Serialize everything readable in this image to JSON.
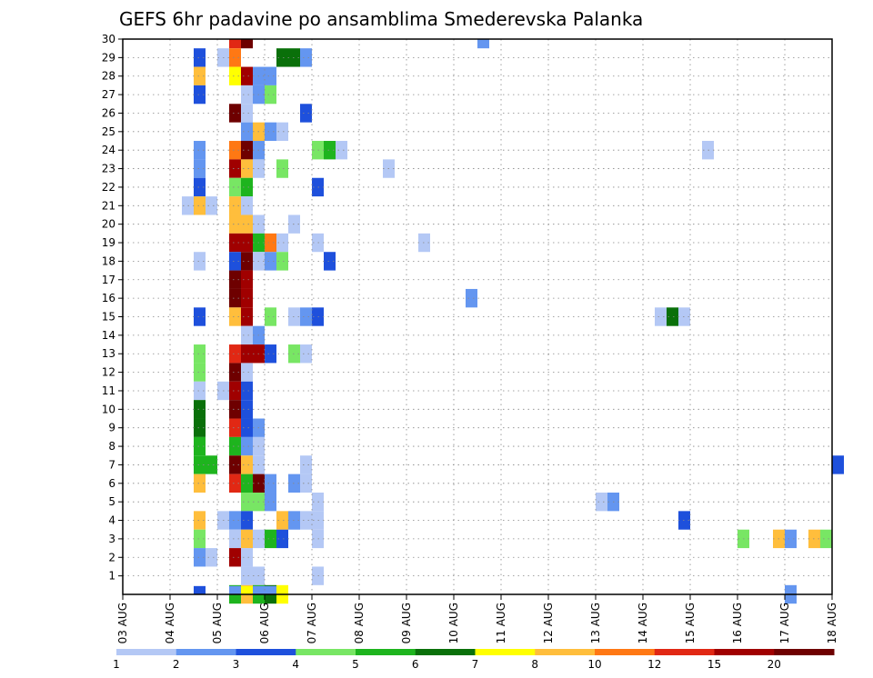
{
  "chart_data": {
    "type": "heatmap",
    "title": "GEFS 6hr padavine po ansamblima Smederevska Palanka",
    "xlabel": "",
    "ylabel": "",
    "x_tick_labels": [
      "03 AUG",
      "04 AUG",
      "05 AUG",
      "06 AUG",
      "07 AUG",
      "08 AUG",
      "09 AUG",
      "10 AUG",
      "11 AUG",
      "12 AUG",
      "13 AUG",
      "14 AUG",
      "15 AUG",
      "16 AUG",
      "17 AUG",
      "18 AUG"
    ],
    "y_tick_labels": [
      "1",
      "2",
      "3",
      "4",
      "5",
      "6",
      "7",
      "8",
      "9",
      "10",
      "11",
      "12",
      "13",
      "14",
      "15",
      "16",
      "17",
      "18",
      "19",
      "20",
      "21",
      "22",
      "23",
      "24",
      "25",
      "26",
      "27",
      "28",
      "29",
      "30"
    ],
    "xlim_days": [
      0,
      15
    ],
    "ylim_members": [
      0,
      30
    ],
    "time_step_hours": 6,
    "grid": "dotted",
    "legend_placement": "bottom colorbar",
    "colorbar": {
      "labels": [
        "1",
        "2",
        "3",
        "4",
        "5",
        "6",
        "7",
        "8",
        "10",
        "12",
        "15",
        "20"
      ],
      "colors": [
        "#b4c8f5",
        "#6496f0",
        "#1e50dc",
        "#78e664",
        "#1eb41e",
        "#0a700a",
        "#ffff00",
        "#ffbe3c",
        "#ff7814",
        "#e12814",
        "#a00000",
        "#6e0000"
      ]
    },
    "cells_note": "row = ensemble member 1-30 (0 = bottom row below member 1), col = 6-hour step index from 03 AUG 00Z, level = colorbar bin index 0-11",
    "cells": [
      [
        30,
        9,
        9
      ],
      [
        30,
        10,
        11
      ],
      [
        30,
        30,
        1
      ],
      [
        29,
        6,
        2
      ],
      [
        29,
        8,
        0
      ],
      [
        29,
        9,
        8
      ],
      [
        29,
        13,
        5
      ],
      [
        29,
        14,
        5
      ],
      [
        29,
        15,
        1
      ],
      [
        28,
        6,
        7
      ],
      [
        28,
        9,
        6
      ],
      [
        28,
        10,
        10
      ],
      [
        28,
        11,
        1
      ],
      [
        28,
        12,
        1
      ],
      [
        27,
        6,
        2
      ],
      [
        27,
        10,
        0
      ],
      [
        27,
        11,
        1
      ],
      [
        27,
        12,
        3
      ],
      [
        26,
        9,
        11
      ],
      [
        26,
        10,
        0
      ],
      [
        26,
        15,
        2
      ],
      [
        25,
        10,
        1
      ],
      [
        25,
        11,
        7
      ],
      [
        25,
        12,
        1
      ],
      [
        25,
        13,
        0
      ],
      [
        24,
        6,
        1
      ],
      [
        24,
        9,
        8
      ],
      [
        24,
        10,
        11
      ],
      [
        24,
        11,
        1
      ],
      [
        24,
        16,
        3
      ],
      [
        24,
        17,
        4
      ],
      [
        24,
        18,
        0
      ],
      [
        24,
        49,
        0
      ],
      [
        23,
        6,
        1
      ],
      [
        23,
        9,
        10
      ],
      [
        23,
        10,
        7
      ],
      [
        23,
        11,
        0
      ],
      [
        23,
        13,
        3
      ],
      [
        23,
        22,
        0
      ],
      [
        22,
        6,
        2
      ],
      [
        22,
        9,
        3
      ],
      [
        22,
        10,
        4
      ],
      [
        22,
        16,
        2
      ],
      [
        21,
        5,
        0
      ],
      [
        21,
        6,
        7
      ],
      [
        21,
        7,
        0
      ],
      [
        21,
        9,
        7
      ],
      [
        21,
        10,
        0
      ],
      [
        20,
        9,
        7
      ],
      [
        20,
        10,
        7
      ],
      [
        20,
        11,
        0
      ],
      [
        20,
        14,
        0
      ],
      [
        19,
        9,
        10
      ],
      [
        19,
        10,
        10
      ],
      [
        19,
        11,
        4
      ],
      [
        19,
        12,
        8
      ],
      [
        19,
        13,
        0
      ],
      [
        19,
        16,
        0
      ],
      [
        19,
        25,
        0
      ],
      [
        18,
        6,
        0
      ],
      [
        18,
        9,
        2
      ],
      [
        18,
        10,
        11
      ],
      [
        18,
        11,
        0
      ],
      [
        18,
        12,
        1
      ],
      [
        18,
        13,
        3
      ],
      [
        18,
        17,
        2
      ],
      [
        17,
        9,
        11
      ],
      [
        17,
        10,
        10
      ],
      [
        16,
        9,
        11
      ],
      [
        16,
        10,
        10
      ],
      [
        16,
        29,
        1
      ],
      [
        15,
        6,
        2
      ],
      [
        15,
        9,
        7
      ],
      [
        15,
        10,
        10
      ],
      [
        15,
        12,
        3
      ],
      [
        15,
        14,
        0
      ],
      [
        15,
        15,
        1
      ],
      [
        15,
        16,
        2
      ],
      [
        15,
        45,
        0
      ],
      [
        15,
        46,
        5
      ],
      [
        15,
        47,
        0
      ],
      [
        14,
        10,
        0
      ],
      [
        14,
        11,
        1
      ],
      [
        13,
        6,
        3
      ],
      [
        13,
        9,
        9
      ],
      [
        13,
        10,
        10
      ],
      [
        13,
        11,
        10
      ],
      [
        13,
        12,
        2
      ],
      [
        13,
        14,
        3
      ],
      [
        13,
        15,
        0
      ],
      [
        12,
        6,
        3
      ],
      [
        12,
        9,
        11
      ],
      [
        12,
        10,
        0
      ],
      [
        11,
        6,
        0
      ],
      [
        11,
        8,
        0
      ],
      [
        11,
        9,
        10
      ],
      [
        11,
        10,
        2
      ],
      [
        10,
        6,
        5
      ],
      [
        10,
        9,
        11
      ],
      [
        10,
        10,
        2
      ],
      [
        9,
        6,
        5
      ],
      [
        9,
        9,
        9
      ],
      [
        9,
        10,
        2
      ],
      [
        9,
        11,
        1
      ],
      [
        8,
        6,
        4
      ],
      [
        8,
        9,
        4
      ],
      [
        8,
        10,
        1
      ],
      [
        8,
        11,
        0
      ],
      [
        7,
        6,
        4
      ],
      [
        7,
        7,
        4
      ],
      [
        7,
        9,
        11
      ],
      [
        7,
        10,
        7
      ],
      [
        7,
        11,
        0
      ],
      [
        7,
        15,
        0
      ],
      [
        7,
        60,
        2
      ],
      [
        6,
        6,
        7
      ],
      [
        6,
        9,
        9
      ],
      [
        6,
        10,
        4
      ],
      [
        6,
        11,
        11
      ],
      [
        6,
        12,
        1
      ],
      [
        6,
        14,
        1
      ],
      [
        6,
        15,
        0
      ],
      [
        5,
        10,
        3
      ],
      [
        5,
        11,
        3
      ],
      [
        5,
        12,
        1
      ],
      [
        5,
        16,
        0
      ],
      [
        5,
        40,
        0
      ],
      [
        5,
        41,
        1
      ],
      [
        4,
        6,
        7
      ],
      [
        4,
        8,
        0
      ],
      [
        4,
        9,
        1
      ],
      [
        4,
        10,
        2
      ],
      [
        4,
        13,
        7
      ],
      [
        4,
        14,
        1
      ],
      [
        4,
        15,
        0
      ],
      [
        4,
        16,
        0
      ],
      [
        4,
        47,
        2
      ],
      [
        3,
        6,
        3
      ],
      [
        3,
        9,
        0
      ],
      [
        3,
        10,
        7
      ],
      [
        3,
        11,
        0
      ],
      [
        3,
        12,
        4
      ],
      [
        3,
        13,
        2
      ],
      [
        3,
        16,
        0
      ],
      [
        3,
        52,
        3
      ],
      [
        3,
        55,
        7
      ],
      [
        3,
        56,
        1
      ],
      [
        3,
        58,
        7
      ],
      [
        3,
        59,
        3
      ],
      [
        2,
        6,
        1
      ],
      [
        2,
        7,
        0
      ],
      [
        2,
        9,
        10
      ],
      [
        2,
        10,
        0
      ],
      [
        1,
        10,
        0
      ],
      [
        1,
        11,
        0
      ],
      [
        1,
        16,
        0
      ],
      [
        0,
        9,
        4
      ],
      [
        0,
        10,
        7
      ],
      [
        0,
        11,
        4
      ],
      [
        0,
        12,
        5
      ],
      [
        0,
        13,
        6
      ],
      [
        0,
        56,
        1
      ],
      [
        -1,
        6,
        2
      ],
      [
        -1,
        9,
        1
      ],
      [
        -1,
        10,
        6
      ],
      [
        -1,
        11,
        1
      ],
      [
        -1,
        12,
        1
      ]
    ]
  }
}
